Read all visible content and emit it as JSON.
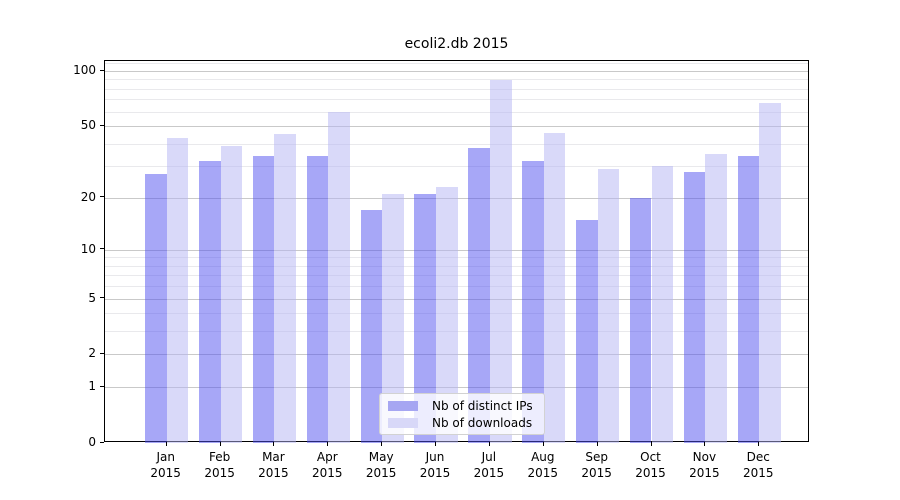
{
  "chart_data": {
    "type": "bar",
    "title": "ecoli2.db 2015",
    "categories": [
      "Jan",
      "Feb",
      "Mar",
      "Apr",
      "May",
      "Jun",
      "Jul",
      "Aug",
      "Sep",
      "Oct",
      "Nov",
      "Dec"
    ],
    "category_year": "2015",
    "series": [
      {
        "name": "Nb of distinct IPs",
        "color": "#a6a6f2",
        "fill": "rgba(80,80,240,0.5)",
        "values": [
          27,
          32,
          34,
          34,
          17,
          21,
          38,
          32,
          15,
          20,
          28,
          34
        ]
      },
      {
        "name": "Nb of downloads",
        "color": "#d8d8f8",
        "fill": "rgba(180,180,243,0.5)",
        "values": [
          43,
          39,
          45,
          60,
          21,
          23,
          89,
          46,
          29,
          30,
          35,
          67
        ]
      }
    ],
    "yscale": "log1p",
    "ylim": [
      0,
      113
    ],
    "yticks": [
      0,
      1,
      2,
      5,
      10,
      20,
      50,
      100
    ],
    "yticks_minor": [
      3,
      4,
      6,
      7,
      8,
      9,
      30,
      40,
      60,
      70,
      80,
      90,
      110
    ],
    "grid": true,
    "legend_position": "lower center"
  },
  "colors": {
    "background": "#ffffff",
    "spine": "#000000",
    "major_grid": "#c9c9c9",
    "minor_grid": "#e9e9ec",
    "text": "#000000",
    "legend_border": "#d2d2d2"
  }
}
